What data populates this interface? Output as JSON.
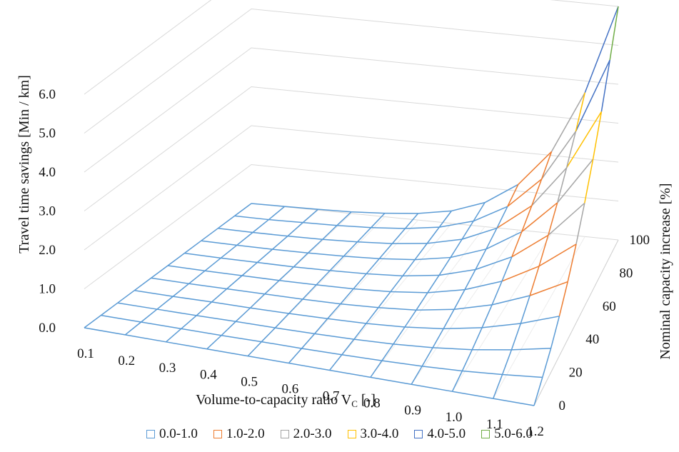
{
  "chart_data": {
    "type": "surface",
    "title": "",
    "xlabel_main": "Volume-to-capacity ratio V",
    "xlabel_sub": "C",
    "xlabel_tail": " [-]",
    "ylabel": "Travel time savings [Min / km]",
    "zlabel": "Nominal capacity increase [%]",
    "x_ticks": [
      "0.1",
      "0.2",
      "0.3",
      "0.4",
      "0.5",
      "0.6",
      "0.7",
      "0.8",
      "0.9",
      "1.0",
      "1.1",
      "1.2"
    ],
    "y_ticks": [
      "0.0",
      "1.0",
      "2.0",
      "3.0",
      "4.0",
      "5.0",
      "6.0"
    ],
    "z_ticks": [
      "0",
      "20",
      "40",
      "60",
      "80",
      "100"
    ],
    "x_values": [
      0.1,
      0.2,
      0.3,
      0.4,
      0.5,
      0.6,
      0.7,
      0.8,
      0.9,
      1.0,
      1.1,
      1.2
    ],
    "z_values": [
      0,
      10,
      20,
      30,
      40,
      50,
      60,
      70,
      80,
      90,
      100
    ],
    "ylim": [
      0,
      6
    ],
    "grid": true,
    "legend_position": "bottom",
    "series": [
      {
        "name": "0.0-1.0",
        "color": "#5b9bd5"
      },
      {
        "name": "1.0-2.0",
        "color": "#ed7d31"
      },
      {
        "name": "2.0-3.0",
        "color": "#a5a5a5"
      },
      {
        "name": "3.0-4.0",
        "color": "#ffc000"
      },
      {
        "name": "4.0-5.0",
        "color": "#4472c4"
      },
      {
        "name": "5.0-6.0",
        "color": "#70ad47"
      }
    ],
    "surface_values": [
      [
        0.0,
        0.0,
        0.0,
        0.0,
        0.0,
        0.0,
        0.0,
        0.0,
        0.0,
        0.0,
        0.0,
        0.0
      ],
      [
        0.0,
        0.0,
        0.0,
        0.0,
        0.01,
        0.01,
        0.02,
        0.04,
        0.07,
        0.12,
        0.2,
        0.3
      ],
      [
        0.0,
        0.0,
        0.0,
        0.01,
        0.01,
        0.02,
        0.04,
        0.08,
        0.15,
        0.26,
        0.42,
        0.62
      ],
      [
        0.0,
        0.0,
        0.01,
        0.01,
        0.02,
        0.04,
        0.07,
        0.13,
        0.24,
        0.42,
        0.68,
        1.02
      ],
      [
        0.0,
        0.0,
        0.01,
        0.02,
        0.03,
        0.05,
        0.1,
        0.18,
        0.34,
        0.6,
        0.98,
        1.48
      ],
      [
        0.0,
        0.0,
        0.01,
        0.02,
        0.04,
        0.07,
        0.13,
        0.24,
        0.45,
        0.8,
        1.32,
        2.02
      ],
      [
        0.0,
        0.0,
        0.01,
        0.02,
        0.05,
        0.09,
        0.16,
        0.3,
        0.57,
        1.02,
        1.7,
        2.65
      ],
      [
        0.0,
        0.0,
        0.01,
        0.03,
        0.06,
        0.11,
        0.2,
        0.37,
        0.7,
        1.26,
        2.12,
        3.35
      ],
      [
        0.0,
        0.0,
        0.01,
        0.03,
        0.07,
        0.13,
        0.24,
        0.45,
        0.84,
        1.52,
        2.6,
        4.15
      ],
      [
        0.0,
        0.0,
        0.02,
        0.04,
        0.08,
        0.15,
        0.28,
        0.53,
        1.0,
        1.8,
        3.12,
        5.05
      ],
      [
        0.0,
        0.01,
        0.02,
        0.04,
        0.09,
        0.17,
        0.32,
        0.62,
        1.17,
        2.1,
        3.7,
        6.0
      ]
    ]
  }
}
